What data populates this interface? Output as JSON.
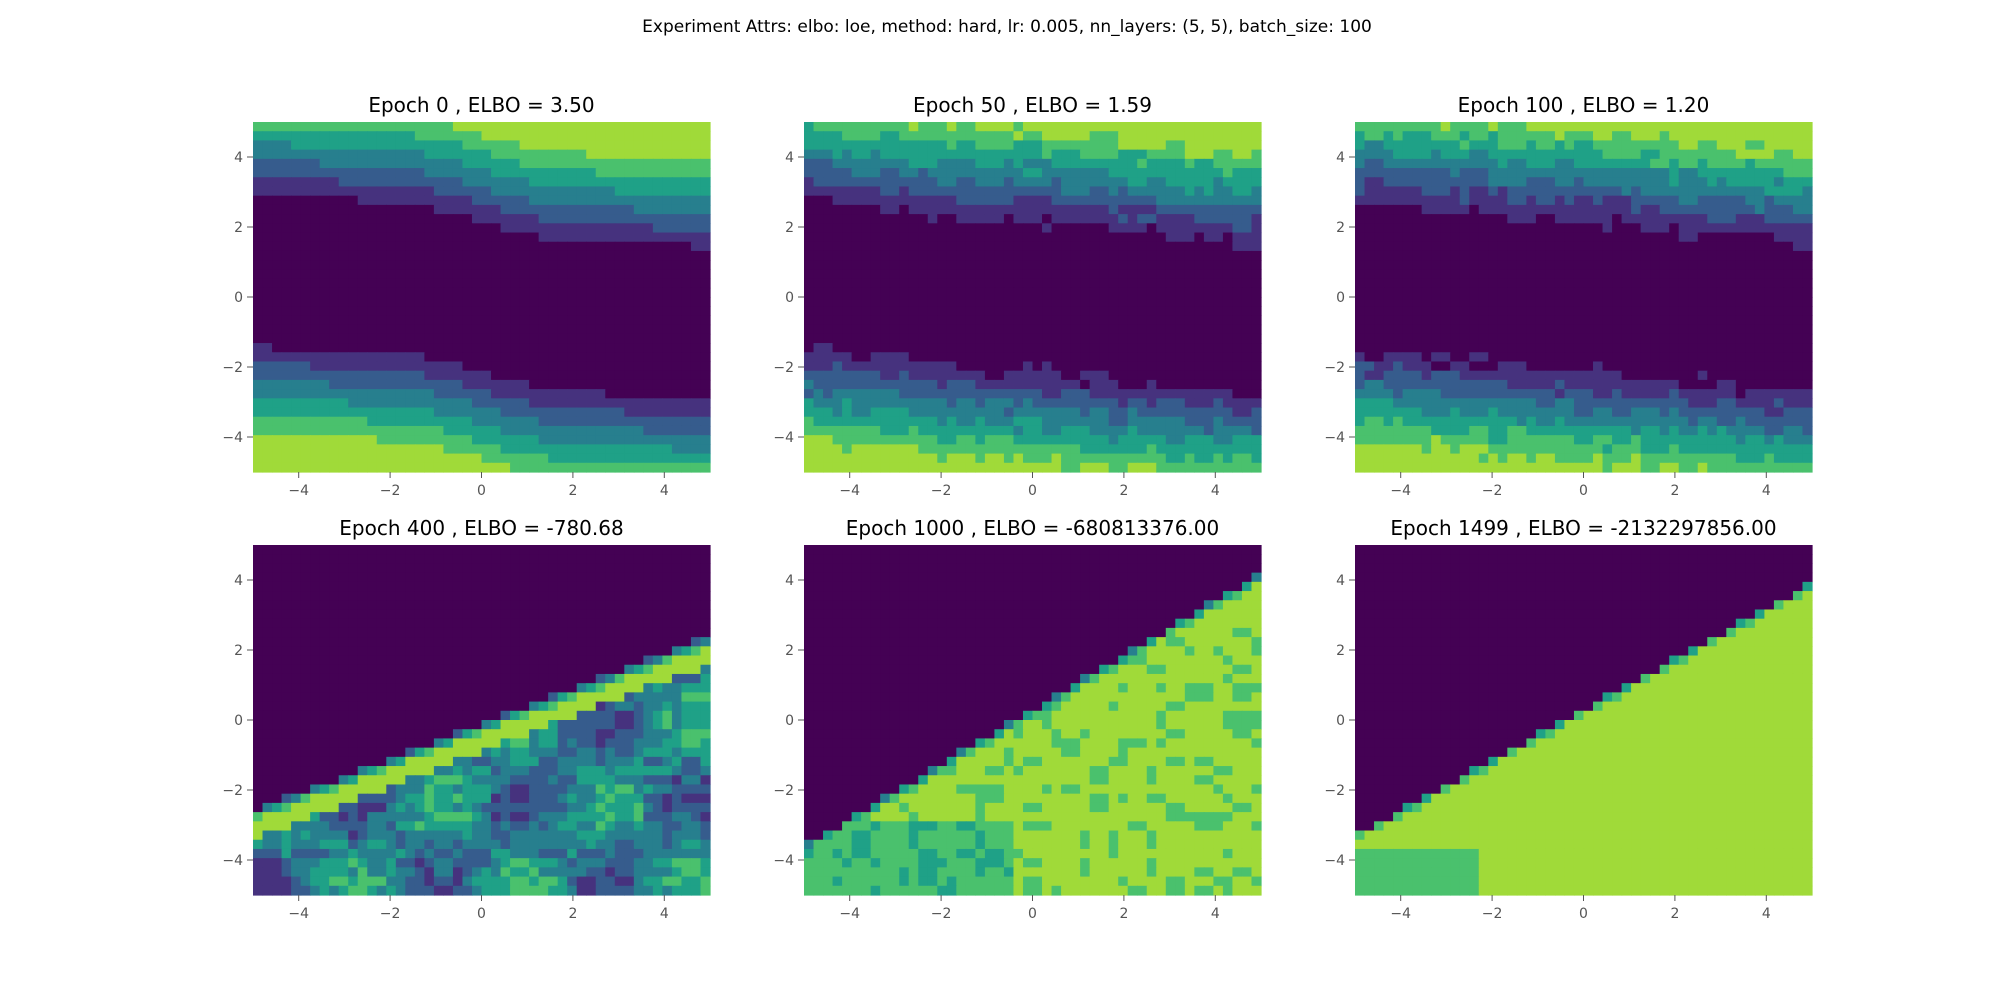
{
  "figure": {
    "suptitle": "Experiment Attrs: elbo: loe, method: hard, lr: 0.005, nn_layers: (5, 5), batch_size: 100"
  },
  "colors": {
    "levels": [
      "#440154",
      "#46327e",
      "#365c8d",
      "#277f8e",
      "#1fa187",
      "#4ac16d",
      "#a0da39"
    ],
    "tick_label": "#555555",
    "tick_line": "#555555"
  },
  "chart_data": [
    {
      "type": "contour",
      "title": "Epoch 0 , ELBO = 3.50",
      "xlim": [
        -5,
        5
      ],
      "ylim": [
        -5,
        5
      ],
      "xticks": [
        -4,
        -2,
        0,
        2,
        4
      ],
      "yticks": [
        -4,
        -2,
        0,
        2,
        4
      ],
      "xticklabels": [
        "−4",
        "−2",
        "0",
        "2",
        "4"
      ],
      "yticklabels": [
        "−4",
        "−2",
        "0",
        "2",
        "4"
      ],
      "grid": false,
      "pattern": "bands",
      "noise": 0.0
    },
    {
      "type": "contour",
      "title": "Epoch 50 , ELBO = 1.59",
      "xlim": [
        -5,
        5
      ],
      "ylim": [
        -5,
        5
      ],
      "xticks": [
        -4,
        -2,
        0,
        2,
        4
      ],
      "yticks": [
        -4,
        -2,
        0,
        2,
        4
      ],
      "xticklabels": [
        "−4",
        "−2",
        "0",
        "2",
        "4"
      ],
      "yticklabels": [
        "−4",
        "−2",
        "0",
        "2",
        "4"
      ],
      "grid": false,
      "pattern": "bands",
      "noise": 0.6
    },
    {
      "type": "contour",
      "title": "Epoch 100 , ELBO = 1.20",
      "xlim": [
        -5,
        5
      ],
      "ylim": [
        -5,
        5
      ],
      "xticks": [
        -4,
        -2,
        0,
        2,
        4
      ],
      "yticks": [
        -4,
        -2,
        0,
        2,
        4
      ],
      "xticklabels": [
        "−4",
        "−2",
        "0",
        "2",
        "4"
      ],
      "yticklabels": [
        "−4",
        "−2",
        "0",
        "2",
        "4"
      ],
      "grid": false,
      "pattern": "bands",
      "noise": 0.6
    },
    {
      "type": "contour",
      "title": "Epoch 400 , ELBO = -780.68",
      "xlim": [
        -5,
        5
      ],
      "ylim": [
        -5,
        5
      ],
      "xticks": [
        -4,
        -2,
        0,
        2,
        4
      ],
      "yticks": [
        -4,
        -2,
        0,
        2,
        4
      ],
      "xticklabels": [
        "−4",
        "−2",
        "0",
        "2",
        "4"
      ],
      "yticklabels": [
        "−4",
        "−2",
        "0",
        "2",
        "4"
      ],
      "grid": false,
      "pattern": "diagonal",
      "boundary": [
        -2.6,
        2.4
      ],
      "below": "mixed",
      "noise": 0.5
    },
    {
      "type": "contour",
      "title": "Epoch 1000 , ELBO = -680813376.00",
      "xlim": [
        -5,
        5
      ],
      "ylim": [
        -5,
        5
      ],
      "xticks": [
        -4,
        -2,
        0,
        2,
        4
      ],
      "yticks": [
        -4,
        -2,
        0,
        2,
        4
      ],
      "xticklabels": [
        "−4",
        "−2",
        "0",
        "2",
        "4"
      ],
      "yticklabels": [
        "−4",
        "−2",
        "0",
        "2",
        "4"
      ],
      "grid": false,
      "pattern": "diagonal",
      "boundary": [
        -3.6,
        4.2
      ],
      "below": "light",
      "noise": 0.4
    },
    {
      "type": "contour",
      "title": "Epoch 1499 , ELBO = -2132297856.00",
      "xlim": [
        -5,
        5
      ],
      "ylim": [
        -5,
        5
      ],
      "xticks": [
        -4,
        -2,
        0,
        2,
        4
      ],
      "yticks": [
        -4,
        -2,
        0,
        2,
        4
      ],
      "xticklabels": [
        "−4",
        "−2",
        "0",
        "2",
        "4"
      ],
      "yticklabels": [
        "−4",
        "−2",
        "0",
        "2",
        "4"
      ],
      "grid": false,
      "pattern": "diagonal",
      "boundary": [
        -3.3,
        3.9
      ],
      "below": "flat",
      "noise": 0.1
    }
  ]
}
